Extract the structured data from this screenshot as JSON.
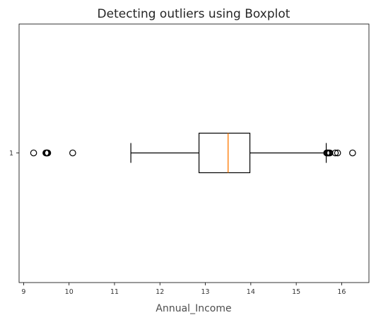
{
  "chart_data": {
    "type": "boxplot",
    "title": "Detecting outliers using Boxplot",
    "xlabel": "Annual_Income",
    "ylabel": "",
    "orientation": "horizontal",
    "xlim": [
      8.9,
      16.6
    ],
    "xticks": [
      "9",
      "10",
      "11",
      "12",
      "13",
      "14",
      "15",
      "16"
    ],
    "yticks": [
      "1"
    ],
    "grid": false,
    "series": [
      {
        "category": "1",
        "whisker_low": 11.36,
        "q1": 12.86,
        "median": 13.5,
        "q3": 13.98,
        "whisker_high": 15.66,
        "outliers": [
          9.22,
          9.49,
          9.5,
          9.51,
          9.52,
          9.53,
          10.08,
          15.67,
          15.69,
          15.7,
          15.72,
          15.74,
          15.86,
          15.91,
          16.24
        ]
      }
    ],
    "colors": {
      "box": "#000000",
      "median": "#ff7f0e",
      "outlier": "#000000",
      "axes": "#000000"
    }
  }
}
